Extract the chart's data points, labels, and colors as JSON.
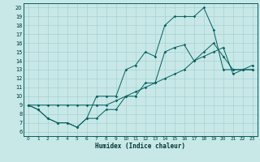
{
  "xlabel": "Humidex (Indice chaleur)",
  "xlim": [
    -0.5,
    23.5
  ],
  "ylim": [
    5.5,
    20.5
  ],
  "xticks": [
    0,
    1,
    2,
    3,
    4,
    5,
    6,
    7,
    8,
    9,
    10,
    11,
    12,
    13,
    14,
    15,
    16,
    17,
    18,
    19,
    20,
    21,
    22,
    23
  ],
  "yticks": [
    6,
    7,
    8,
    9,
    10,
    11,
    12,
    13,
    14,
    15,
    16,
    17,
    18,
    19,
    20
  ],
  "background_color": "#c8e8e8",
  "grid_color": "#a8d0d0",
  "line_color": "#006060",
  "line1_y": [
    9,
    8.5,
    7.5,
    7,
    7,
    6.5,
    7.5,
    7.5,
    8.5,
    8.5,
    10,
    10,
    11.5,
    11.5,
    15,
    15.5,
    15.8,
    14,
    15,
    16,
    14.5,
    13,
    13,
    13
  ],
  "line2_y": [
    9,
    8.5,
    7.5,
    7,
    7,
    6.5,
    7.5,
    10,
    10,
    10,
    13,
    13.5,
    15,
    14.5,
    18,
    19,
    19,
    19,
    20,
    17.5,
    13,
    13,
    13,
    13
  ],
  "line3_y": [
    9,
    9,
    9,
    9,
    9,
    9,
    9,
    9,
    9,
    9.5,
    10,
    10.5,
    11,
    11.5,
    12,
    12.5,
    13,
    14,
    14.5,
    15,
    15.5,
    12.5,
    13,
    13.5
  ]
}
